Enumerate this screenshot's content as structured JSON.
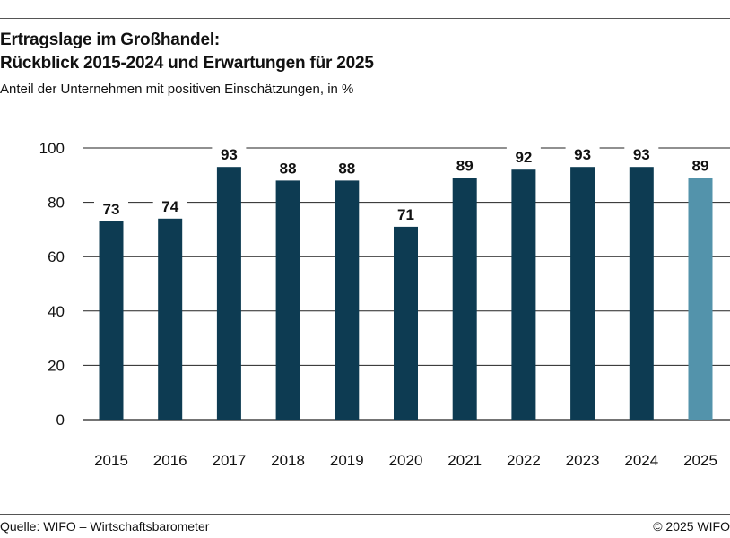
{
  "header": {
    "title_line1": "Ertragslage im Großhandel:",
    "title_line2": "Rückblick 2015-2024 und Erwartungen für 2025",
    "subtitle": "Anteil der Unternehmen mit positiven Einschätzungen, in %"
  },
  "footer": {
    "source": "Quelle: WIFO – Wirtschaftsbarometer",
    "copyright": "© 2025 WIFO"
  },
  "chart_data": {
    "type": "bar",
    "categories": [
      "2015",
      "2016",
      "2017",
      "2018",
      "2019",
      "2020",
      "2021",
      "2022",
      "2023",
      "2024",
      "2025"
    ],
    "values": [
      73,
      74,
      93,
      88,
      88,
      71,
      89,
      92,
      93,
      93,
      89
    ],
    "data_labels": [
      "73",
      "74",
      "93",
      "88",
      "88",
      "71",
      "89",
      "92",
      "93",
      "93",
      "89"
    ],
    "ylim": [
      0,
      100
    ],
    "yticks": [
      0,
      20,
      40,
      60,
      80,
      100
    ],
    "grid": true,
    "colors": {
      "actual": "#0d3b52",
      "expectation": "#5393ab",
      "grid": "#222222"
    },
    "highlight_category": "2025"
  }
}
